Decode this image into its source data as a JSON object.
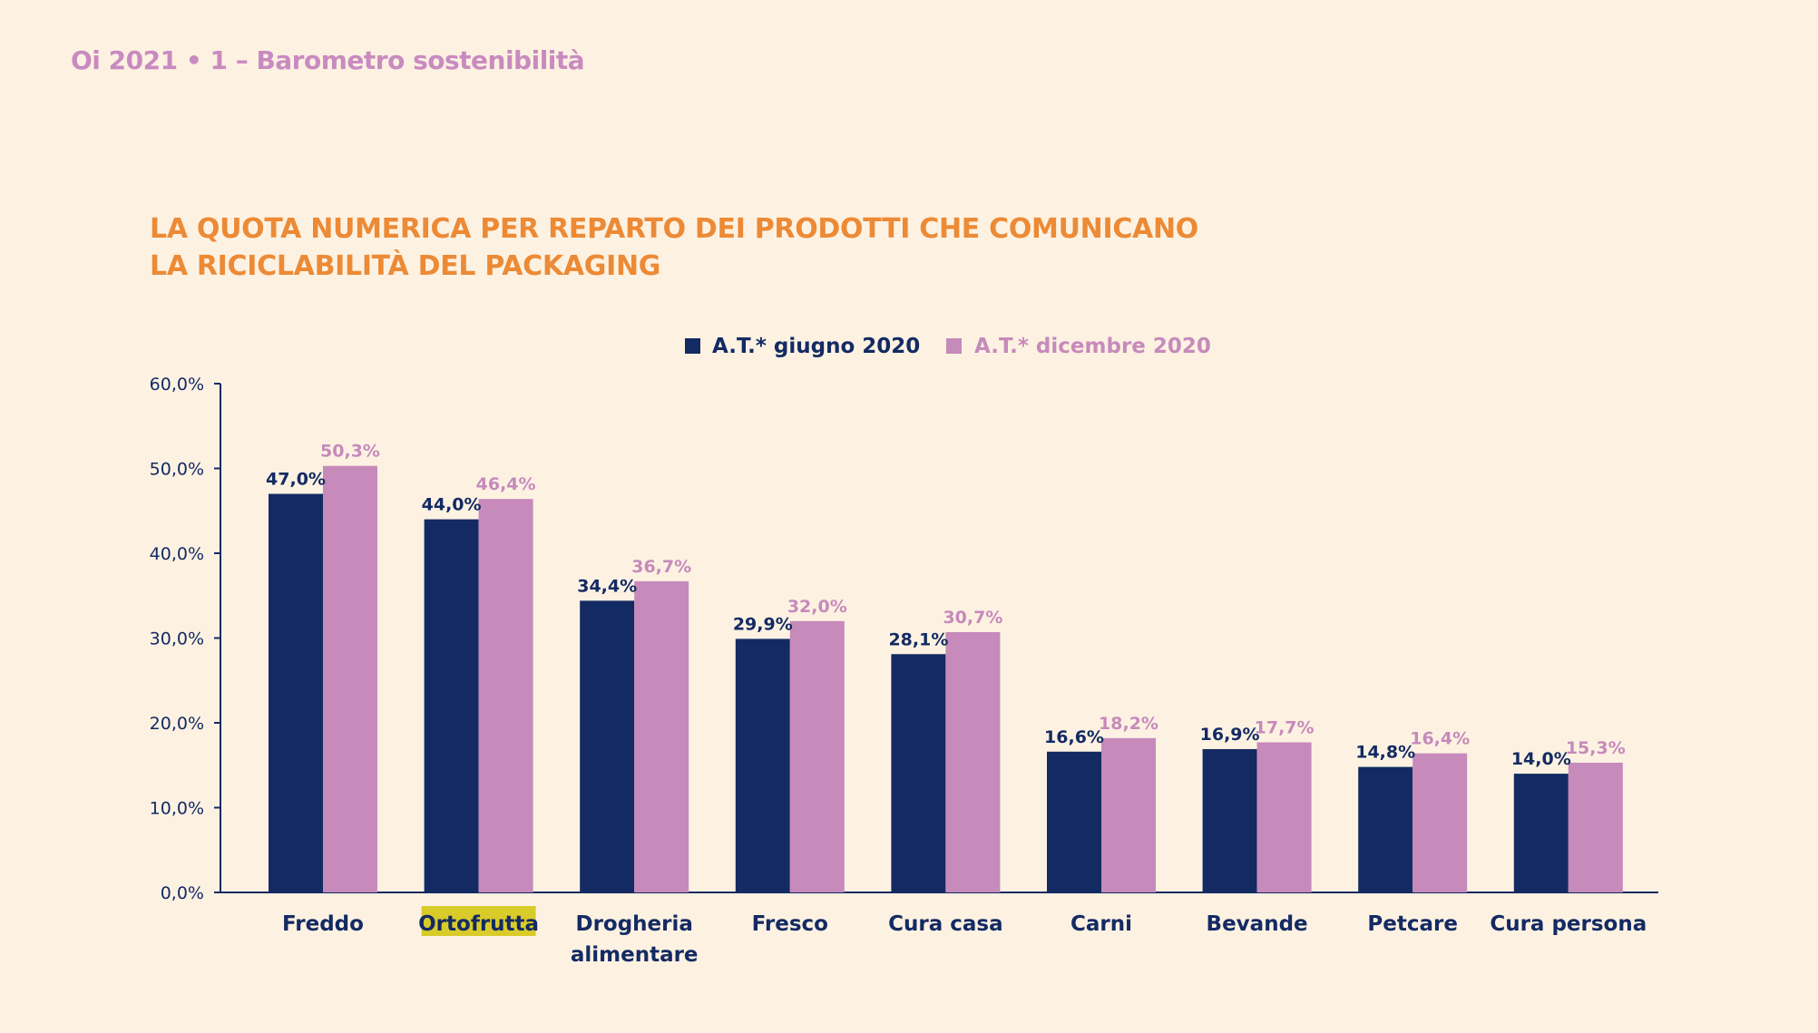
{
  "header": {
    "text": "Oi 2021 • 1 – Barometro sostenibilità"
  },
  "chart_data": {
    "type": "bar",
    "title": "LA QUOTA NUMERICA PER REPARTO DEI PRODOTTI CHE COMUNICANO LA RICICLABILITÀ DEL PACKAGING",
    "title_lines": [
      "LA QUOTA NUMERICA PER REPARTO DEI PRODOTTI CHE COMUNICANO",
      "LA RICICLABILITÀ DEL PACKAGING"
    ],
    "categories": [
      [
        "Freddo"
      ],
      [
        "Ortofrutta"
      ],
      [
        "Drogheria",
        "alimentare"
      ],
      [
        "Fresco"
      ],
      [
        "Cura casa"
      ],
      [
        "Carni"
      ],
      [
        "Bevande"
      ],
      [
        "Petcare"
      ],
      [
        "Cura persona"
      ]
    ],
    "highlighted_category": "Ortofrutta",
    "highlight_color": "#d8cb2a",
    "series": [
      {
        "name": "A.T.* giugno 2020",
        "color": "#142a63",
        "values": [
          47.0,
          44.0,
          34.4,
          29.9,
          28.1,
          16.6,
          16.9,
          14.8,
          14.0
        ],
        "labels": [
          "47,0%",
          "44,0%",
          "34,4%",
          "29,9%",
          "28,1%",
          "16,6%",
          "16,9%",
          "14,8%",
          "14,0%"
        ]
      },
      {
        "name": "A.T.* dicembre 2020",
        "color": "#c68abb",
        "values": [
          50.3,
          46.4,
          36.7,
          32.0,
          30.7,
          18.2,
          17.7,
          16.4,
          15.3
        ],
        "labels": [
          "50,3%",
          "46,4%",
          "36,7%",
          "32,0%",
          "30,7%",
          "18,2%",
          "17,7%",
          "16,4%",
          "15,3%"
        ]
      }
    ],
    "ylim": [
      0,
      60
    ],
    "yticks": [
      0,
      10,
      20,
      30,
      40,
      50,
      60
    ],
    "ytick_labels": [
      "0,0%",
      "10,0%",
      "20,0%",
      "30,0%",
      "40,0%",
      "50,0%",
      "60,0%"
    ],
    "legend_position": "top-center",
    "grid": false,
    "xlabel": "",
    "ylabel": ""
  }
}
